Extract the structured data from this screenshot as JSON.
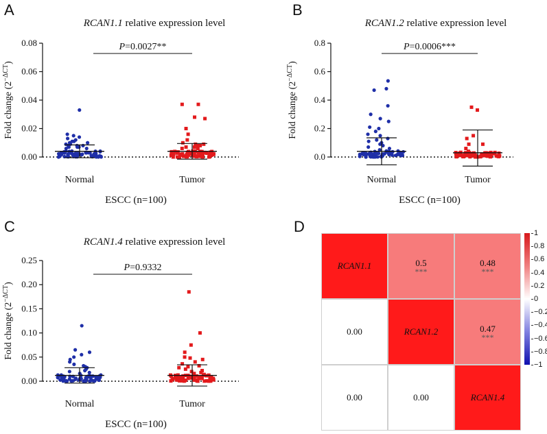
{
  "panels": {
    "A": {
      "letter": "A",
      "gene": "RCAN1.1",
      "title_rest": " relative expression level",
      "ylabel": "Fold change (2",
      "ylabel_exp": "−ΔCT",
      "ylabel_close": ")",
      "xlabel": "ESCC (n=100)",
      "pvalue_p": "P",
      "pvalue_rest": "=0.0027**"
    },
    "B": {
      "letter": "B",
      "gene": "RCAN1.2",
      "title_rest": " relative expression level",
      "ylabel": "Fold change (2",
      "ylabel_exp": "−ΔCT",
      "ylabel_close": ")",
      "xlabel": "ESCC (n=100)",
      "pvalue_p": "P",
      "pvalue_rest": "=0.0006***"
    },
    "C": {
      "letter": "C",
      "gene": "RCAN1.4",
      "title_rest": " relative expression level",
      "ylabel": "Fold change (2",
      "ylabel_exp": "−ΔCT",
      "ylabel_close": ")",
      "xlabel": "ESCC (n=100)",
      "pvalue_p": "P",
      "pvalue_rest": "=0.9332"
    },
    "D": {
      "letter": "D"
    }
  },
  "colors": {
    "normal": "#1f2fa8",
    "tumor": "#e31a1c",
    "heat_strong": "#ff1a1a",
    "heat_light": "#f77b7b"
  },
  "chart_data": [
    {
      "type": "scatter",
      "id": "A",
      "categories": [
        "Normal",
        "Tumor"
      ],
      "yticks": [
        "0.00",
        "0.02",
        "0.04",
        "0.06",
        "0.08"
      ],
      "ylim": [
        0,
        0.08
      ],
      "series": [
        {
          "name": "Normal",
          "mean": 0.004,
          "sd": 0.0045,
          "outliers": [
            0.033,
            0.016,
            0.015,
            0.014,
            0.013,
            0.012,
            0.011,
            0.011,
            0.01,
            0.01,
            0.009,
            0.009,
            0.008,
            0.008,
            0.008,
            0.007,
            0.007,
            0.007,
            0.006,
            0.006
          ]
        },
        {
          "name": "Tumor",
          "mean": 0.004,
          "sd": 0.0055,
          "outliers": [
            0.037,
            0.037,
            0.028,
            0.027,
            0.02,
            0.016,
            0.012,
            0.01,
            0.009,
            0.009,
            0.008,
            0.008,
            0.007,
            0.007,
            0.006,
            0.006
          ]
        }
      ]
    },
    {
      "type": "scatter",
      "id": "B",
      "categories": [
        "Normal",
        "Tumor"
      ],
      "yticks": [
        "0.0",
        "0.2",
        "0.4",
        "0.6",
        "0.8"
      ],
      "ylim": [
        0,
        0.8
      ],
      "series": [
        {
          "name": "Normal",
          "mean": 0.04,
          "sd": 0.095,
          "outliers": [
            0.535,
            0.48,
            0.47,
            0.36,
            0.3,
            0.27,
            0.25,
            0.21,
            0.2,
            0.18,
            0.16,
            0.15,
            0.13,
            0.12,
            0.11,
            0.1,
            0.09,
            0.08,
            0.07,
            0.06,
            0.05,
            0.04
          ]
        },
        {
          "name": "Tumor",
          "mean": 0.03,
          "sd": 0.16,
          "outliers": [
            0.35,
            0.33,
            0.15,
            0.13,
            0.09,
            0.09,
            0.06,
            0.04
          ]
        }
      ]
    },
    {
      "type": "scatter",
      "id": "C",
      "categories": [
        "Normal",
        "Tumor"
      ],
      "yticks": [
        "0.00",
        "0.05",
        "0.10",
        "0.15",
        "0.20",
        "0.25"
      ],
      "ylim": [
        0,
        0.25
      ],
      "series": [
        {
          "name": "Normal",
          "mean": 0.012,
          "sd": 0.016,
          "outliers": [
            0.115,
            0.065,
            0.06,
            0.055,
            0.05,
            0.045,
            0.04,
            0.035,
            0.032,
            0.03,
            0.028,
            0.025,
            0.022,
            0.02,
            0.018,
            0.016
          ]
        },
        {
          "name": "Tumor",
          "mean": 0.012,
          "sd": 0.022,
          "outliers": [
            0.185,
            0.1,
            0.075,
            0.06,
            0.05,
            0.048,
            0.045,
            0.04,
            0.036,
            0.032,
            0.03,
            0.028,
            0.025,
            0.022,
            0.02,
            0.018,
            0.016,
            0.014
          ]
        }
      ]
    },
    {
      "type": "heatmap",
      "id": "D",
      "labels": [
        "RCAN1.1",
        "RCAN1.2",
        "RCAN1.4"
      ],
      "cells": [
        [
          {
            "text": "RCAN1.1",
            "stars": "",
            "fill": "strong",
            "gene": true
          },
          {
            "text": "0.5",
            "stars": "***",
            "fill": "light",
            "gene": false
          },
          {
            "text": "0.48",
            "stars": "***",
            "fill": "light",
            "gene": false
          }
        ],
        [
          {
            "text": "0.00",
            "stars": "",
            "fill": "none",
            "gene": false
          },
          {
            "text": "RCAN1.2",
            "stars": "",
            "fill": "strong",
            "gene": true
          },
          {
            "text": "0.47",
            "stars": "***",
            "fill": "light",
            "gene": false
          }
        ],
        [
          {
            "text": "0.00",
            "stars": "",
            "fill": "none",
            "gene": false
          },
          {
            "text": "0.00",
            "stars": "",
            "fill": "none",
            "gene": false
          },
          {
            "text": "RCAN1.4",
            "stars": "",
            "fill": "strong",
            "gene": true
          }
        ]
      ],
      "colorbar_ticks": [
        "1",
        "0.8",
        "0.6",
        "0.4",
        "0.2",
        "0",
        "−0.2",
        "−0.4",
        "−0.6",
        "−0.8",
        "−1"
      ],
      "colorbar_range": [
        -1,
        1
      ]
    }
  ]
}
